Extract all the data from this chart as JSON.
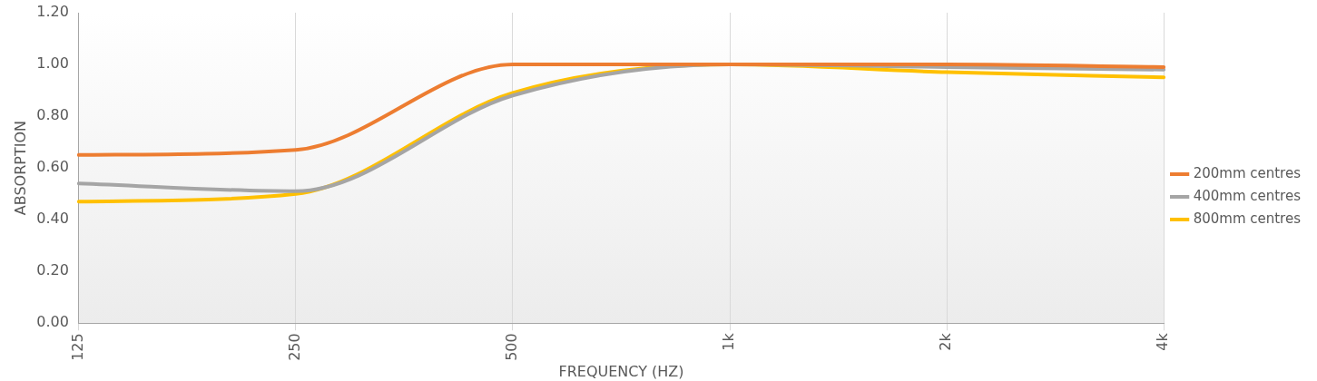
{
  "chart_data": {
    "type": "line",
    "xlabel": "FREQUENCY (HZ)",
    "ylabel": "ABSORPTION",
    "categories": [
      "125",
      "250",
      "500",
      "1k",
      "2k",
      "4k"
    ],
    "series": [
      {
        "name": "200mm centres",
        "color": "#ed7d31",
        "values": [
          0.65,
          0.67,
          1.0,
          1.0,
          1.0,
          0.99
        ]
      },
      {
        "name": "400mm centres",
        "color": "#a5a5a5",
        "values": [
          0.54,
          0.51,
          0.88,
          1.0,
          0.99,
          0.98
        ]
      },
      {
        "name": "800mm centres",
        "color": "#ffc000",
        "values": [
          0.47,
          0.5,
          0.89,
          1.0,
          0.97,
          0.95
        ]
      }
    ],
    "ylim": [
      0,
      1.2
    ],
    "yticks": [
      {
        "value": 0,
        "label": "0.00"
      },
      {
        "value": 0.2,
        "label": "0.20"
      },
      {
        "value": 0.4,
        "label": "0.40"
      },
      {
        "value": 0.6,
        "label": "0.60"
      },
      {
        "value": 0.8,
        "label": "0.80"
      },
      {
        "value": 1,
        "label": "1.00"
      },
      {
        "value": 1.2,
        "label": "1.20"
      }
    ],
    "grid": "x",
    "legend": "right",
    "marker": "none",
    "line_style": "solid"
  }
}
